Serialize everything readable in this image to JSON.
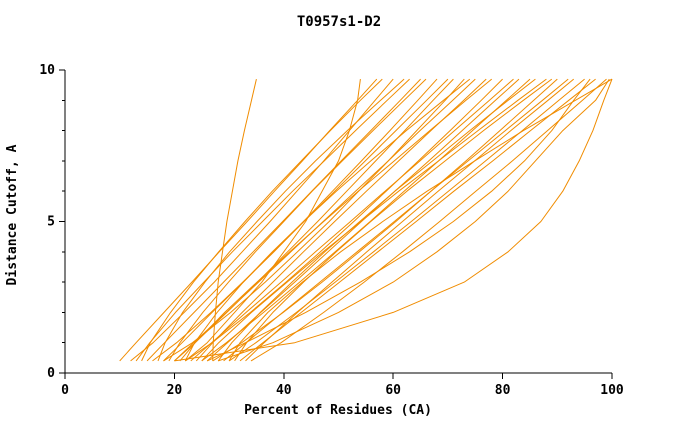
{
  "chart_data": {
    "type": "line",
    "title": "T0957s1-D2",
    "xlabel": "Percent of Residues (CA)",
    "ylabel": "Distance Cutoff, A",
    "xlim": [
      0,
      100
    ],
    "ylim": [
      0,
      10
    ],
    "x_ticks": [
      0,
      20,
      40,
      60,
      80,
      100
    ],
    "y_ticks": [
      0,
      5,
      10
    ],
    "y_minor_ticks": [
      1,
      2,
      3,
      4,
      6,
      7,
      8,
      9
    ],
    "grid": "off",
    "legend": "none",
    "line_color": "#F08C00",
    "axis_color": "#000000",
    "y_levels": [
      0.4,
      1,
      2,
      3,
      4,
      5,
      6,
      7,
      8,
      9,
      9.7
    ],
    "series": [
      {
        "x": [
          27,
          27.1,
          27.5,
          28,
          28.8,
          29.6,
          30.6,
          31.6,
          32.8,
          34.1,
          35
        ]
      },
      {
        "x": [
          10,
          13,
          18.1,
          23.2,
          28.2,
          33.3,
          38.3,
          43.4,
          48.4,
          53.5,
          57
        ]
      },
      {
        "x": [
          12,
          16.1,
          21.8,
          27.3,
          32.4,
          37.5,
          42.4,
          47.3,
          52,
          56.7,
          60
        ]
      },
      {
        "x": [
          13,
          15.5,
          20.2,
          25.4,
          30.6,
          36.1,
          41.6,
          47.4,
          53.1,
          58.9,
          63
        ]
      },
      {
        "x": [
          14,
          15.6,
          19.3,
          23.5,
          28.1,
          32.9,
          37.9,
          43.2,
          48.5,
          54,
          58
        ]
      },
      {
        "x": [
          15,
          18.2,
          23.6,
          29,
          34.4,
          39.8,
          45.1,
          50.5,
          55.9,
          61.3,
          65
        ]
      },
      {
        "x": [
          16,
          20.4,
          26.7,
          32.5,
          38.2,
          43.6,
          48.9,
          54.2,
          59.4,
          64.5,
          68
        ]
      },
      {
        "x": [
          17,
          18.3,
          21.5,
          25.6,
          30.1,
          35.1,
          40.3,
          45.8,
          51.6,
          57.7,
          62
        ]
      },
      {
        "x": [
          18,
          21.4,
          26.9,
          32.6,
          38.1,
          43.7,
          49.3,
          54.9,
          60.5,
          66.1,
          70
        ]
      },
      {
        "x": [
          18,
          23.3,
          30.3,
          36.6,
          42.5,
          48.3,
          53.7,
          59.1,
          64.3,
          69.5,
          73
        ]
      },
      {
        "x": [
          19,
          21,
          25.2,
          29.9,
          34.8,
          40,
          45.2,
          50.7,
          56.3,
          62,
          66
        ]
      },
      {
        "x": [
          20,
          23.5,
          29.5,
          35.4,
          41.3,
          47.2,
          53.1,
          59.1,
          64.9,
          70.9,
          75
        ]
      },
      {
        "x": [
          20,
          23.8,
          29.6,
          35.2,
          40.7,
          46.2,
          51.5,
          56.8,
          62.1,
          67.3,
          71
        ]
      },
      {
        "x": [
          21,
          23.8,
          29.2,
          35.1,
          41.1,
          47.3,
          53.6,
          60.2,
          66.7,
          73.3,
          78
        ]
      },
      {
        "x": [
          22,
          26.9,
          33.9,
          40.4,
          46.7,
          52.8,
          58.7,
          64.6,
          70.4,
          76.1,
          80
        ]
      },
      {
        "x": [
          22,
          23.7,
          27.8,
          32.6,
          37.9,
          43.6,
          49.6,
          55.9,
          62.4,
          69.2,
          74
        ]
      },
      {
        "x": [
          23,
          26.8,
          33.1,
          39.5,
          45.8,
          52.2,
          58.5,
          64.9,
          71.2,
          77.6,
          82
        ]
      },
      {
        "x": [
          24,
          27,
          32.4,
          38,
          43.6,
          49.3,
          55.1,
          61,
          66.9,
          72.9,
          77
        ]
      },
      {
        "x": [
          25,
          29.5,
          36.3,
          42.9,
          49.4,
          55.8,
          62,
          68.3,
          74.5,
          80.7,
          85
        ]
      },
      {
        "x": [
          25,
          28.1,
          34.1,
          40.6,
          47.2,
          54.1,
          61,
          68.3,
          75.5,
          82.8,
          88
        ]
      },
      {
        "x": [
          26,
          29.7,
          35.8,
          42,
          48.1,
          54.2,
          60.3,
          66.5,
          72.6,
          78.7,
          83
        ]
      },
      {
        "x": [
          27,
          32.3,
          39.9,
          47,
          53.8,
          60.5,
          66.9,
          73.3,
          79.5,
          85.7,
          90
        ]
      },
      {
        "x": [
          28,
          30.5,
          35.7,
          41.5,
          47.5,
          53.9,
          60.3,
          67.2,
          74,
          81,
          86
        ]
      },
      {
        "x": [
          29,
          33.1,
          39.8,
          46.6,
          53.4,
          60.2,
          66.9,
          73.7,
          80.5,
          87.3,
          92
        ]
      },
      {
        "x": [
          30,
          34.9,
          42.3,
          49.4,
          56.4,
          63.3,
          70.1,
          76.9,
          83.6,
          90.3,
          95
        ]
      },
      {
        "x": [
          31,
          33.2,
          38,
          43.6,
          49.6,
          55.9,
          62.5,
          69.5,
          76.5,
          83.8,
          89
        ]
      },
      {
        "x": [
          32,
          36.2,
          43.2,
          50.2,
          57.2,
          64.2,
          71.1,
          78.2,
          85.1,
          92.1,
          97
        ]
      },
      {
        "x": [
          33,
          36.4,
          42.5,
          48.8,
          55.2,
          61.7,
          68.2,
          74.9,
          81.5,
          88.3,
          93
        ]
      },
      {
        "x": [
          34,
          39.5,
          47.3,
          54.7,
          61.7,
          68.5,
          75.1,
          81.8,
          88.2,
          94.6,
          99
        ]
      },
      {
        "x": [
          30,
          32,
          37.1,
          43.4,
          50.4,
          58.1,
          66.2,
          74.9,
          83.8,
          93.3,
          100
        ]
      },
      {
        "x": [
          20,
          42,
          60,
          73,
          81,
          87,
          91,
          94,
          96.5,
          98.5,
          100
        ]
      },
      {
        "x": [
          26,
          33,
          44,
          54,
          63,
          71,
          78,
          84,
          89,
          93,
          96
        ]
      },
      {
        "x": [
          22,
          26,
          31,
          36,
          40,
          44,
          47,
          50,
          52,
          53.5,
          54
        ]
      },
      {
        "x": [
          28,
          38,
          50,
          60,
          68,
          75,
          81,
          86,
          91,
          97,
          99.5
        ]
      }
    ]
  }
}
